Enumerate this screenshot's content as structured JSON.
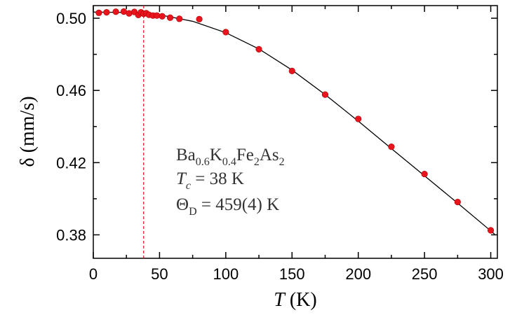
{
  "chart_data": {
    "type": "scatter",
    "xlabel": {
      "symbol": "T",
      "unit": " (K)"
    },
    "ylabel": "δ (mm/s)",
    "xlim": [
      0,
      305
    ],
    "ylim": [
      0.367,
      0.507
    ],
    "xticks": [
      0,
      50,
      100,
      150,
      200,
      250,
      300
    ],
    "yticks": [
      0.38,
      0.42,
      0.46,
      0.5
    ],
    "ytick_labels": [
      "0.38",
      "0.42",
      "0.46",
      "0.50"
    ],
    "grid": false,
    "marker_color": "#e8141e",
    "fit_color": "#000000",
    "tc_line": {
      "x": 38,
      "color": "#e8141e",
      "style": "dashed"
    },
    "points": [
      [
        4.2,
        0.503
      ],
      [
        10,
        0.5033
      ],
      [
        17,
        0.5036
      ],
      [
        23,
        0.5037
      ],
      [
        27,
        0.5027
      ],
      [
        31,
        0.5035
      ],
      [
        34,
        0.5018
      ],
      [
        36,
        0.5033
      ],
      [
        38,
        0.5025
      ],
      [
        40,
        0.5028
      ],
      [
        42,
        0.5019
      ],
      [
        45,
        0.5015
      ],
      [
        48,
        0.5015
      ],
      [
        52,
        0.5011
      ],
      [
        58,
        0.5003
      ],
      [
        65,
        0.4997
      ],
      [
        80,
        0.4995
      ],
      [
        100,
        0.4923
      ],
      [
        125,
        0.4828
      ],
      [
        150,
        0.4708
      ],
      [
        175,
        0.4577
      ],
      [
        200,
        0.4442
      ],
      [
        225,
        0.4288
      ],
      [
        250,
        0.4137
      ],
      [
        275,
        0.3982
      ],
      [
        300,
        0.3825
      ]
    ],
    "fit_curve": [
      [
        0,
        0.5034
      ],
      [
        25,
        0.5032
      ],
      [
        50,
        0.5019
      ],
      [
        75,
        0.4983
      ],
      [
        100,
        0.492
      ],
      [
        125,
        0.483
      ],
      [
        150,
        0.4713
      ],
      [
        175,
        0.4577
      ],
      [
        200,
        0.443
      ],
      [
        225,
        0.4278
      ],
      [
        250,
        0.4127
      ],
      [
        275,
        0.3976
      ],
      [
        300,
        0.3822
      ],
      [
        303,
        0.3803
      ]
    ],
    "annotations": {
      "formula": [
        {
          "t": "Ba"
        },
        {
          "t": "0.6",
          "sub": true
        },
        {
          "t": "K"
        },
        {
          "t": "0.4",
          "sub": true
        },
        {
          "t": "Fe"
        },
        {
          "t": "2",
          "sub": true
        },
        {
          "t": "As"
        },
        {
          "t": "2",
          "sub": true
        }
      ],
      "tc": {
        "sym": "T",
        "sub": "c",
        "rest": " = 38 K"
      },
      "theta": {
        "sym": "Θ",
        "sub": "D",
        "rest": " = 459(4) K"
      }
    }
  }
}
